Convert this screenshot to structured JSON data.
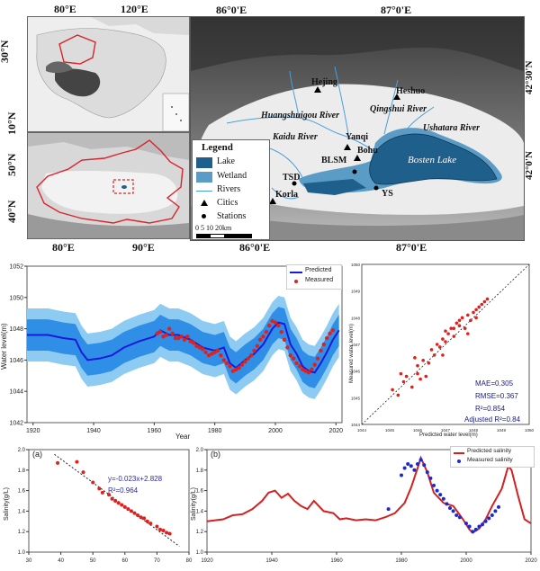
{
  "maps": {
    "china": {
      "lat_labels": [
        "30°N",
        "10°N"
      ],
      "lon_labels": [
        "80°E",
        "120°E"
      ]
    },
    "xinjiang": {
      "lat_labels": [
        "50°N",
        "40°N"
      ],
      "lon_labels": [
        "80°E",
        "90°E"
      ]
    },
    "basin": {
      "lon_top": [
        "86°0'E",
        "87°0'E"
      ],
      "lon_bottom": [
        "86°0'E",
        "87°0'E"
      ],
      "lat_right": [
        "42°30'N",
        "42°0'N"
      ],
      "places": {
        "hejing": "Hejing",
        "heshuo": "Heshuo",
        "qingshui": "Qingshui River",
        "huangshuigou": "Huangshuigou River",
        "ushatara": "Ushatara River",
        "kaidu": "Kaidu River",
        "yanqi": "Yanqi",
        "bohu": "Bohu",
        "blsm": "BLSM",
        "tsd": "TSD",
        "korla": "Korla",
        "ys": "YS",
        "bosten": "Bosten Lake"
      },
      "legend": {
        "title": "Legend",
        "lake": "Lake",
        "wetland": "Wetland",
        "rivers": "Rivers",
        "cities": "Citics",
        "stations": "Stations",
        "scale": "0  5  10     20km"
      }
    }
  },
  "colors": {
    "lake": "#1f5f8b",
    "wetland": "#5b9cc6",
    "river": "#4a9fe0",
    "boundary": "#d9242c",
    "predicted": "#1a1adb",
    "measured": "#e0201c"
  },
  "chart_data": [
    {
      "type": "line",
      "xlabel": "Year",
      "ylabel": "Water level(m)",
      "xlim": [
        1918,
        2022
      ],
      "ylim": [
        1042,
        1052
      ],
      "xticks": [
        1920,
        1940,
        1960,
        1980,
        2000,
        2020
      ],
      "yticks": [
        1042,
        1044,
        1046,
        1048,
        1050,
        1052
      ],
      "legend": {
        "position": "top-right",
        "predicted": "Predicted",
        "measured": "Measured"
      },
      "predicted": {
        "x": [
          1918,
          1925,
          1930,
          1934,
          1936,
          1938,
          1942,
          1946,
          1950,
          1955,
          1960,
          1962,
          1965,
          1968,
          1972,
          1976,
          1980,
          1983,
          1985,
          1987,
          1990,
          1993,
          1996,
          1999,
          2001,
          2003,
          2005,
          2007,
          2009,
          2011,
          2013,
          2015,
          2017,
          2019,
          2021
        ],
        "y": [
          1047.6,
          1047.6,
          1047.4,
          1047.3,
          1046.5,
          1046.0,
          1046.1,
          1046.3,
          1046.8,
          1047.2,
          1047.5,
          1047.9,
          1047.6,
          1047.6,
          1047.3,
          1046.8,
          1046.6,
          1046.8,
          1045.8,
          1045.5,
          1046.0,
          1046.4,
          1047.0,
          1048.0,
          1048.4,
          1048.3,
          1047.0,
          1046.4,
          1045.6,
          1045.3,
          1045.2,
          1045.8,
          1046.5,
          1047.3,
          1047.9
        ]
      },
      "measured": {
        "x": [
          1961,
          1962,
          1963,
          1964,
          1965,
          1966,
          1967,
          1968,
          1969,
          1970,
          1971,
          1972,
          1973,
          1974,
          1975,
          1976,
          1977,
          1978,
          1979,
          1980,
          1981,
          1982,
          1983,
          1984,
          1985,
          1986,
          1987,
          1988,
          1989,
          1990,
          1991,
          1992,
          1993,
          1994,
          1995,
          1996,
          1997,
          1998,
          1999,
          2000,
          2001,
          2002,
          2003,
          2004,
          2005,
          2006,
          2007,
          2008,
          2009,
          2010,
          2011,
          2012,
          2013,
          2014,
          2015,
          2016,
          2017,
          2018,
          2019
        ],
        "y": [
          1047.7,
          1047.8,
          1047.5,
          1047.6,
          1048.0,
          1047.7,
          1047.4,
          1047.4,
          1047.5,
          1047.3,
          1047.5,
          1047.2,
          1047.1,
          1046.9,
          1046.8,
          1046.7,
          1046.5,
          1046.3,
          1046.4,
          1046.5,
          1046.6,
          1046.3,
          1046.0,
          1045.8,
          1045.6,
          1045.3,
          1045.4,
          1045.5,
          1045.7,
          1045.9,
          1046.1,
          1046.3,
          1046.6,
          1046.9,
          1047.3,
          1047.5,
          1047.8,
          1048.2,
          1048.5,
          1048.4,
          1048.2,
          1047.8,
          1047.3,
          1046.8,
          1046.3,
          1046.1,
          1045.8,
          1045.6,
          1045.4,
          1045.3,
          1045.2,
          1045.4,
          1045.7,
          1046.1,
          1046.6,
          1047.0,
          1047.4,
          1047.7,
          1047.9
        ]
      }
    },
    {
      "type": "scatter",
      "xlabel": "Predicted water level(m)",
      "ylabel": "Measured water level(m)",
      "xlim": [
        1044,
        1050
      ],
      "ylim": [
        1044,
        1050
      ],
      "stats": {
        "mae": "MAE=0.305",
        "rmse": "RMSE=0.367",
        "r2": "R²=0.854",
        "adj": "Adjusted R²=0.84"
      },
      "x": [
        1045.1,
        1045.3,
        1045.5,
        1045.6,
        1045.8,
        1046.0,
        1046.0,
        1046.1,
        1046.2,
        1046.4,
        1046.5,
        1046.6,
        1046.7,
        1046.8,
        1046.9,
        1047.0,
        1047.1,
        1047.2,
        1047.3,
        1047.4,
        1047.5,
        1047.5,
        1047.6,
        1047.7,
        1047.8,
        1047.9,
        1048.0,
        1048.1,
        1048.2,
        1048.3,
        1048.4,
        1048.5,
        1045.4,
        1045.9,
        1046.3,
        1046.9,
        1047.3,
        1047.8,
        1048.1,
        1047.0
      ],
      "y": [
        1045.3,
        1045.1,
        1045.6,
        1045.8,
        1045.4,
        1045.9,
        1046.2,
        1045.7,
        1046.4,
        1046.3,
        1046.8,
        1046.6,
        1047.0,
        1046.9,
        1047.2,
        1047.1,
        1047.4,
        1047.6,
        1047.3,
        1047.8,
        1047.7,
        1047.9,
        1048.0,
        1047.6,
        1048.1,
        1047.9,
        1048.2,
        1048.0,
        1048.4,
        1048.5,
        1048.6,
        1048.7,
        1045.9,
        1046.5,
        1045.8,
        1046.6,
        1047.6,
        1047.4,
        1048.3,
        1047.5
      ]
    },
    {
      "type": "scatter",
      "panel": "(a)",
      "xlabel": "",
      "ylabel": "Salinity(g/L)",
      "xlim": [
        30,
        80
      ],
      "ylim": [
        1.0,
        2.0
      ],
      "equation": "y=-0.023x+2.828",
      "r2": "R²=0.964",
      "x": [
        39,
        45,
        47,
        50,
        52,
        53,
        55,
        56,
        57,
        58,
        59,
        60,
        61,
        62,
        63,
        64,
        65,
        66,
        67,
        68,
        70,
        71,
        72,
        73,
        74
      ],
      "y": [
        1.87,
        1.88,
        1.78,
        1.68,
        1.62,
        1.58,
        1.56,
        1.52,
        1.5,
        1.48,
        1.46,
        1.44,
        1.42,
        1.4,
        1.38,
        1.36,
        1.34,
        1.33,
        1.3,
        1.28,
        1.25,
        1.22,
        1.21,
        1.19,
        1.18
      ]
    },
    {
      "type": "line",
      "panel": "(b)",
      "xlabel": "",
      "ylabel": "Salinity(g/L)",
      "xlim": [
        1920,
        2020
      ],
      "ylim": [
        1.0,
        2.0
      ],
      "legend": {
        "position": "top-right",
        "predicted": "Predicted salinity",
        "measured": "Measured salinity"
      },
      "predicted": {
        "x": [
          1920,
          1925,
          1928,
          1931,
          1934,
          1937,
          1939,
          1941,
          1943,
          1945,
          1947,
          1949,
          1951,
          1953,
          1956,
          1959,
          1961,
          1963,
          1966,
          1969,
          1972,
          1975,
          1978,
          1981,
          1983,
          1985,
          1986,
          1988,
          1990,
          1993,
          1996,
          1999,
          2001,
          2002,
          2004,
          2006,
          2008,
          2011,
          2013,
          2014,
          2016,
          2018,
          2020
        ],
        "y": [
          1.3,
          1.32,
          1.36,
          1.37,
          1.42,
          1.5,
          1.58,
          1.6,
          1.53,
          1.57,
          1.5,
          1.45,
          1.42,
          1.5,
          1.4,
          1.38,
          1.32,
          1.33,
          1.31,
          1.32,
          1.31,
          1.34,
          1.38,
          1.48,
          1.63,
          1.82,
          1.92,
          1.78,
          1.58,
          1.48,
          1.45,
          1.32,
          1.22,
          1.19,
          1.23,
          1.32,
          1.45,
          1.62,
          1.84,
          1.8,
          1.55,
          1.32,
          1.28
        ]
      },
      "measured": {
        "x": [
          1976,
          1980,
          1981,
          1982,
          1983,
          1984,
          1985,
          1986,
          1987,
          1988,
          1989,
          1990,
          1991,
          1992,
          1993,
          1994,
          1995,
          1996,
          1997,
          1998,
          2000,
          2001,
          2002,
          2003,
          2004,
          2005,
          2006,
          2007,
          2008,
          2009,
          2010
        ],
        "y": [
          1.42,
          1.75,
          1.82,
          1.86,
          1.84,
          1.8,
          1.86,
          1.9,
          1.85,
          1.78,
          1.72,
          1.65,
          1.6,
          1.56,
          1.52,
          1.47,
          1.43,
          1.4,
          1.36,
          1.34,
          1.28,
          1.25,
          1.2,
          1.22,
          1.25,
          1.27,
          1.3,
          1.33,
          1.36,
          1.4,
          1.44
        ]
      }
    }
  ]
}
